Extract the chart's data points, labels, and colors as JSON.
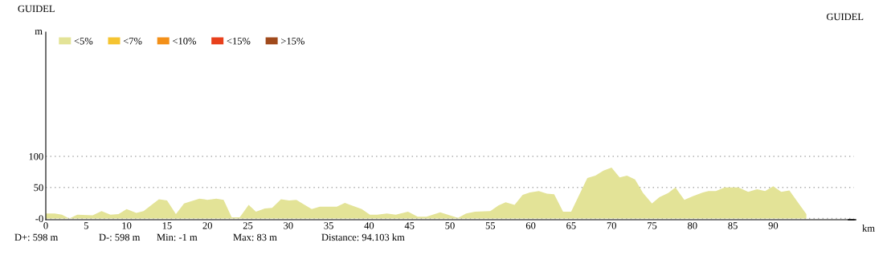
{
  "chart_data": {
    "type": "area",
    "xlabel": "km",
    "ylabel": "m",
    "annotations": [
      "GUIDEL",
      "GUIDEL",
      "D+: 598 m",
      "D-: 598 m",
      "Min: -1 m",
      "Max: 83 m",
      "Distance: 94.103 km"
    ],
    "series": [
      {
        "name": "<5%",
        "color": "#e3e397",
        "x": [
          0,
          1.1,
          2,
          2.9,
          3.9,
          5.8,
          6.9,
          8,
          9,
          10,
          11.2,
          12.1,
          14,
          15,
          16.1,
          17.1,
          19,
          20,
          21.1,
          22,
          23,
          24,
          25.1,
          26,
          27.1,
          28,
          29.1,
          30.1,
          31,
          32.9,
          33.9,
          36,
          37,
          39.1,
          40.1,
          41,
          42.2,
          43.3,
          44.8,
          46,
          47.1,
          48.8,
          51,
          52,
          53.1,
          55,
          56,
          56.9,
          58,
          59,
          59.9,
          61,
          62,
          62.9,
          64,
          65,
          67,
          68,
          69,
          70,
          71,
          71.9,
          72.9,
          73.9,
          75,
          75.9,
          77,
          77.9,
          79,
          80.1,
          81.3,
          82,
          82.9,
          84,
          85.7,
          86.9,
          88,
          89,
          90,
          91,
          92,
          94.1
        ],
        "values": [
          8,
          8,
          6,
          0,
          6,
          5,
          12,
          6,
          7,
          15,
          9,
          12,
          31,
          29,
          7,
          24,
          32,
          30,
          32,
          30,
          2,
          2,
          22,
          11,
          16,
          17,
          31,
          29,
          30,
          15,
          19,
          19,
          25,
          15,
          6,
          6,
          8,
          6,
          11,
          3,
          3,
          10,
          1,
          8,
          11,
          12,
          21,
          26,
          22,
          38,
          42,
          44,
          40,
          39,
          11,
          11,
          65,
          69,
          77,
          82,
          66,
          69,
          63,
          41,
          24,
          34,
          41,
          50,
          30,
          36,
          42,
          44,
          44,
          50,
          50,
          43,
          47,
          44,
          52,
          43,
          45,
          7
        ]
      },
      {
        "name": "<7%",
        "color": "#f5c431"
      },
      {
        "name": "<10%",
        "color": "#f39019"
      },
      {
        "name": "<15%",
        "color": "#e8401c"
      },
      {
        "name": ">15%",
        "color": "#a04a1c"
      }
    ],
    "xlim": [
      0,
      100
    ],
    "xticks": [
      0,
      5,
      10,
      15,
      20,
      25,
      30,
      35,
      40,
      45,
      50,
      55,
      60,
      65,
      70,
      75,
      80,
      85,
      90
    ],
    "ylim": [
      -2,
      300
    ],
    "yticks": [
      {
        "value": 0,
        "label": "-0"
      },
      50,
      100
    ],
    "grid": "y",
    "legend": "top left"
  }
}
